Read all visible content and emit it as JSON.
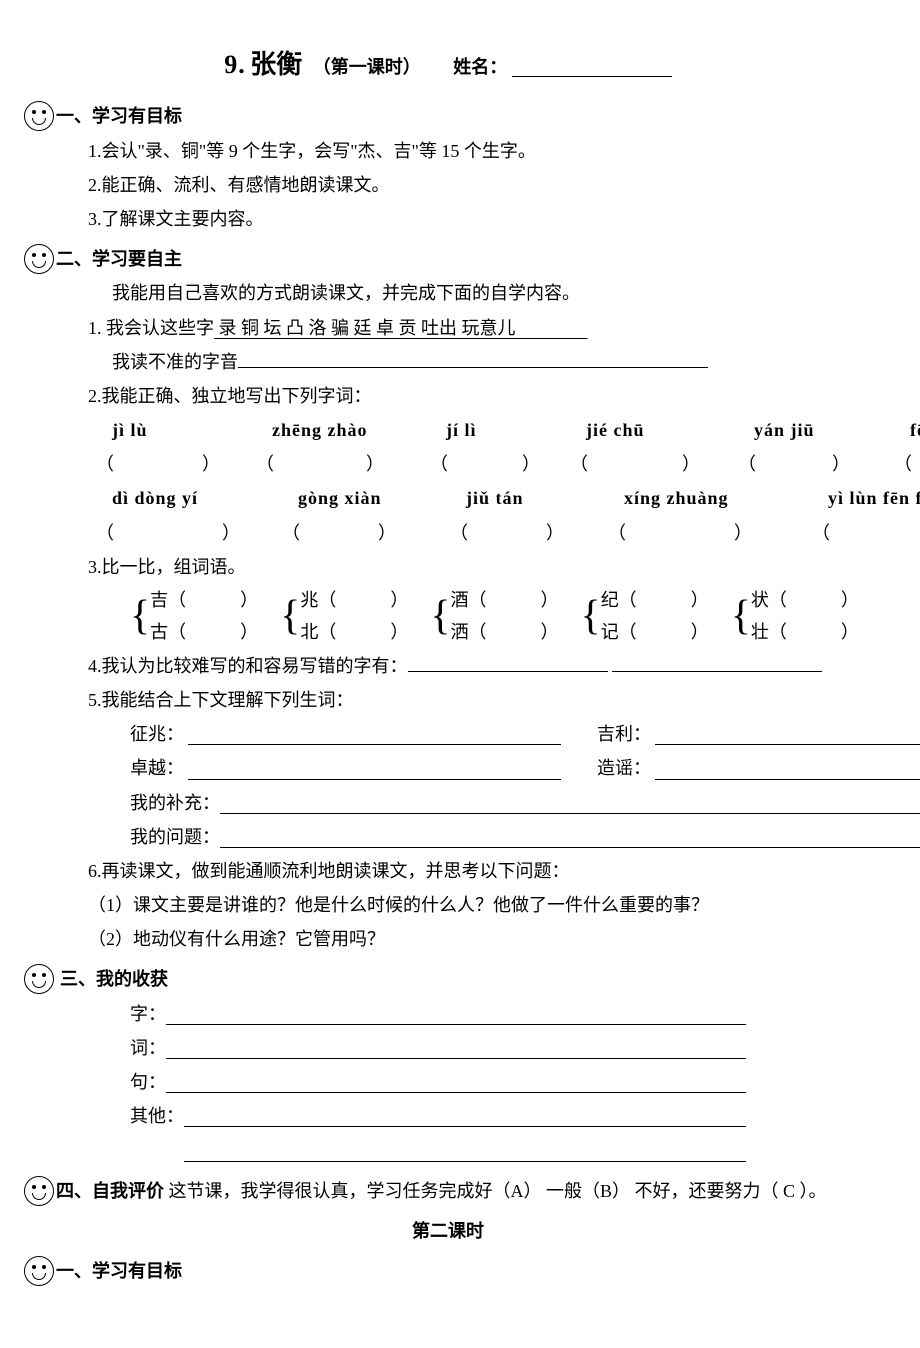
{
  "header": {
    "lesson_number": "9.",
    "lesson_name": "张衡",
    "subtitle": "（第一课时）",
    "name_label": "姓名："
  },
  "sec1": {
    "head": "一、学习有目标",
    "i1": "1.会认\"录、铜\"等 9 个生字，会写\"杰、吉\"等 15 个生字。",
    "i2": "2.能正确、流利、有感情地朗读课文。",
    "i3": "3.了解课文主要内容。"
  },
  "sec2": {
    "head": "二、学习要自主",
    "intro": "我能用自己喜欢的方式朗读课文，并完成下面的自学内容。",
    "q1_lead": "1.  我会认这些字",
    "q1_chars": " 录   铜   坛   凸   洛   骗   廷   卓   贡   吐出   玩意儿　　　　",
    "q1_unread": "我读不准的字音",
    "q2": "2.我能正确、独立地写出下列字词：",
    "pinyin_row1": [
      "jì   lù",
      "zhēng  zhào",
      "jí   lì",
      "jié   chū",
      "yán  jiū",
      "fēn    xī"
    ],
    "pinyin_row2": [
      "dì  dòng  yí",
      "gòng  xiàn",
      "jiǔ  tán",
      "xíng  zhuàng",
      "yì  lùn  fēn  fēn"
    ],
    "q3": "3.比一比，组词语。",
    "pairs": [
      {
        "a": "吉（　　　）",
        "b": "古（　　　）"
      },
      {
        "a": "兆（　　　）",
        "b": "北（　　　）"
      },
      {
        "a": "酒（　　　）",
        "b": "洒（　　　）"
      },
      {
        "a": "纪（　　　）",
        "b": "记（　　　）"
      },
      {
        "a": "状（　　　）",
        "b": "壮（　　　）"
      }
    ],
    "q4": "4.我认为比较难写的和容易写错的字有：",
    "q5": "5.我能结合上下文理解下列生词：",
    "defs": {
      "d1": "征兆：",
      "d2": "吉利：",
      "d3": "卓越：",
      "d4": "造谣："
    },
    "supp": "我的补充：",
    "ques": "我的问题：",
    "q6": "6.再读课文，做到能通顺流利地朗读课文，并思考以下问题：",
    "q6_1": "（1）课文主要是讲谁的？他是什么时候的什么人？他做了一件什么重要的事？",
    "q6_2": "（2）地动仪有什么用途？它管用吗？"
  },
  "sec3": {
    "head": "三、我的收获",
    "r1": "字：",
    "r2": "词：",
    "r3": "句：",
    "r4": "其他："
  },
  "sec4": {
    "head": "四、自我评价",
    "body": " 这节课，我学得很认真，学习任务完成好（A）  一般（B）  不好，还要努力（ C ）。"
  },
  "second_lesson_title": "第二课时",
  "sec5": {
    "head": "一、学习有目标"
  },
  "layout": {
    "pinyin_col_widths_1": [
      160,
      174,
      140,
      168,
      156,
      100
    ],
    "paren_gaps_1": [
      88,
      92,
      74,
      94,
      76,
      100
    ],
    "pinyin_col_widths_2": [
      186,
      168,
      158,
      204,
      200
    ],
    "paren_gaps_2": [
      108,
      78,
      78,
      108,
      168
    ]
  }
}
